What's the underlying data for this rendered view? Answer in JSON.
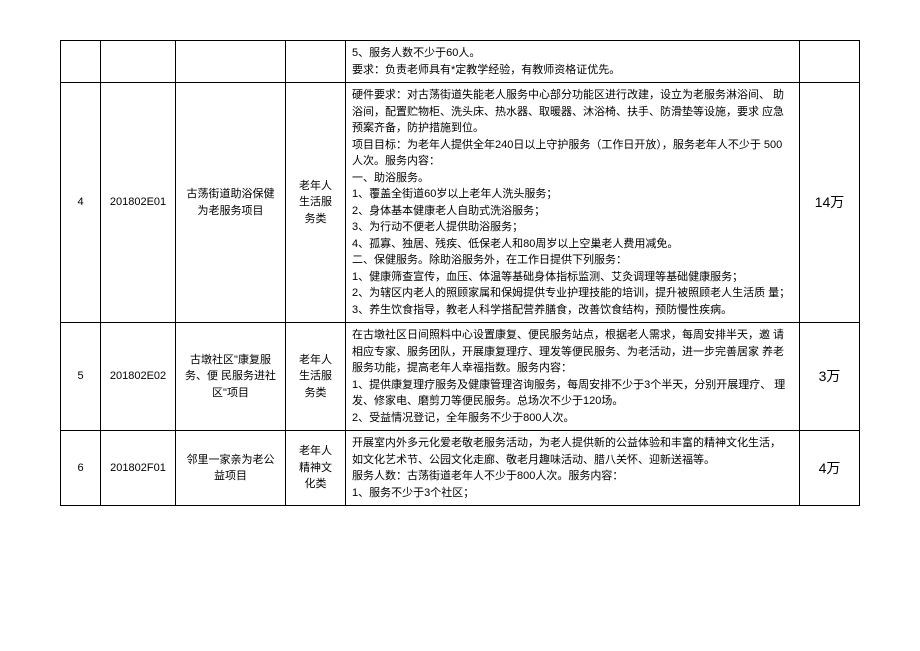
{
  "table": {
    "border_color": "#000000",
    "background_color": "#ffffff",
    "font_size_body": 11,
    "font_size_amount": 14,
    "rows": [
      {
        "seq": "",
        "code": "",
        "name": "",
        "category": "",
        "desc": "5、服务人数不少于60人。\n要求：负责老师具有*定教学经验，有教师资格证优先。",
        "amount": ""
      },
      {
        "seq": "4",
        "code": "201802E01",
        "name": "古荡街道助浴保健 为老服务项目",
        "category": "老年人 生活服 务类",
        "desc": "硬件要求：对古荡街道失能老人服务中心部分功能区进行改建，设立为老服务淋浴间、 助浴间，配置贮物柜、洗头床、热水器、取暖器、沐浴椅、扶手、防滑垫等设施，要求 应急预案齐备，防护措施到位。\n项目目标：为老年人提供全年240日以上守护服务（工作日开放），服务老年人不少于 500人次。服务内容：\n一、助浴服务。\n1、覆盖全街道60岁以上老年人洗头服务；\n2、身体基本健康老人自助式洗浴服务；\n3、为行动不便老人提供助浴服务；\n4、孤寡、独居、残疾、低保老人和80周岁以上空巢老人费用减免。\n二、保健服务。除助浴服务外，在工作日提供下列服务：\n1、健康筛查宣传，血压、体温等基础身体指标监测、艾灸调理等基础健康服务；\n2、为辖区内老人的照顾家属和保姆提供专业护理技能的培训，提升被照顾老人生活质 量；\n3、养生饮食指导，教老人科学搭配营养膳食，改善饮食结构，预防慢性疾病。",
        "amount": "14万"
      },
      {
        "seq": "5",
        "code": "201802E02",
        "name": "古墩社区\"康复服务、便 民服务进社区\"项目",
        "category": "老年人 生活服 务类",
        "desc": "在古墩社区日间照料中心设置康复、便民服务站点，根据老人需求，每周安排半天，邀 请相应专家、服务团队，开展康复理疗、理发等便民服务、为老活动，进一步完善居家 养老服务功能，提高老年人幸福指数。服务内容：\n1、提供康复理疗服务及健康管理咨询服务，每周安排不少于3个半天，分别开展理疗、 理发、修家电、磨剪刀等便民服务。总场次不少于120场。\n2、受益情况登记，全年服务不少于800人次。",
        "amount": "3万"
      },
      {
        "seq": "6",
        "code": "201802F01",
        "name": "邻里一家亲为老公益项目",
        "category": "老年人 精神文 化类",
        "desc": "开展室内外多元化爱老敬老服务活动，为老人提供新的公益体验和丰富的精神文化生活， 如文化艺术节、公园文化走廊、敬老月趣味活动、腊八关怀、迎新送福等。\n服务人数：古荡街道老年人不少于800人次。服务内容：\n1、服务不少于3个社区；",
        "amount": "4万"
      }
    ]
  }
}
